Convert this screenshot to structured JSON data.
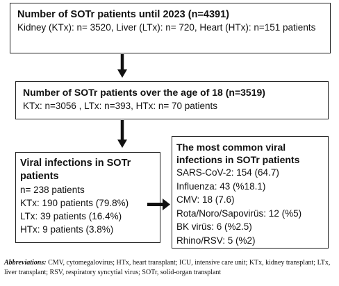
{
  "box1": {
    "title": "Number of SOTr patients until 2023  (n=4391)",
    "details": "Kidney (KTx): n= 3520, Liver (LTx): n= 720, Heart (HTx): n=151 patients"
  },
  "box2": {
    "title": "Number of SOTr patients over the age of 18 (n=3519)",
    "details": "KTx: n=3056 , LTx: n=393, HTx: n= 70 patients"
  },
  "box3": {
    "title": "Viral infections  in SOTr patients",
    "lines": [
      " n= 238 patients",
      "KTx: 190 patients (79.8%)",
      "LTx: 39 patients (16.4%)",
      "HTx: 9 patients (3.8%)"
    ]
  },
  "box4": {
    "title": "The most common viral infections in  SOTr patients",
    "lines": [
      "SARS-CoV-2: 154 (64.7)",
      "Influenza: 43 (%18.1)",
      "CMV: 18 (7.6)",
      "Rota/Noro/Sapovirüs: 12 (%5)",
      "BK virüs: 6 (%2.5)",
      "Rhino/RSV: 5 (%2)"
    ]
  },
  "footnote": {
    "label": "Abbreviations:",
    "text": " CMV, cytomegalovirus; HTx, heart transplant; ICU, intensive care unit; KTx, kidney transplant; LTx, liver transplant; RSV, respiratory syncytial virus; SOTr, solid-organ transplant"
  }
}
